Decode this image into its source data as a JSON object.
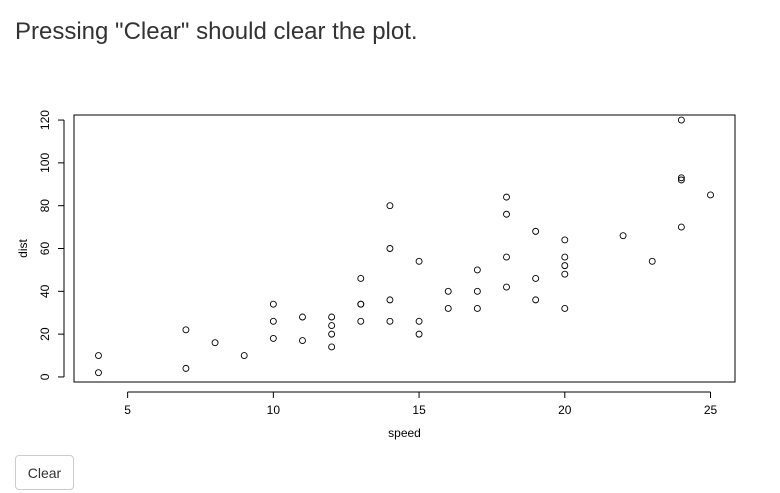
{
  "page": {
    "title": "Pressing \"Clear\" should clear the plot."
  },
  "controls": {
    "clear_label": "Clear"
  },
  "chart_data": {
    "type": "scatter",
    "title": "",
    "xlabel": "speed",
    "ylabel": "dist",
    "xlim": [
      3.16,
      25.84
    ],
    "ylim": [
      -2.36,
      122.36
    ],
    "xticks": [
      5,
      10,
      15,
      20,
      25
    ],
    "yticks": [
      0,
      20,
      40,
      60,
      80,
      100,
      120
    ],
    "grid": false,
    "marker": "open-circle",
    "series": [
      {
        "x": [
          4,
          4,
          7,
          7,
          8,
          9,
          10,
          10,
          10,
          11,
          11,
          12,
          12,
          12,
          12,
          13,
          13,
          13,
          13,
          14,
          14,
          14,
          14,
          15,
          15,
          15,
          16,
          16,
          17,
          17,
          17,
          18,
          18,
          18,
          18,
          19,
          19,
          19,
          20,
          20,
          20,
          20,
          20,
          22,
          23,
          24,
          24,
          24,
          24,
          25
        ],
        "y": [
          2,
          10,
          4,
          22,
          16,
          10,
          18,
          26,
          34,
          17,
          28,
          14,
          20,
          24,
          28,
          26,
          34,
          34,
          46,
          26,
          36,
          60,
          80,
          20,
          26,
          54,
          32,
          40,
          32,
          40,
          50,
          42,
          56,
          76,
          84,
          36,
          46,
          68,
          32,
          48,
          52,
          56,
          64,
          66,
          54,
          70,
          92,
          93,
          120,
          85
        ]
      }
    ]
  }
}
